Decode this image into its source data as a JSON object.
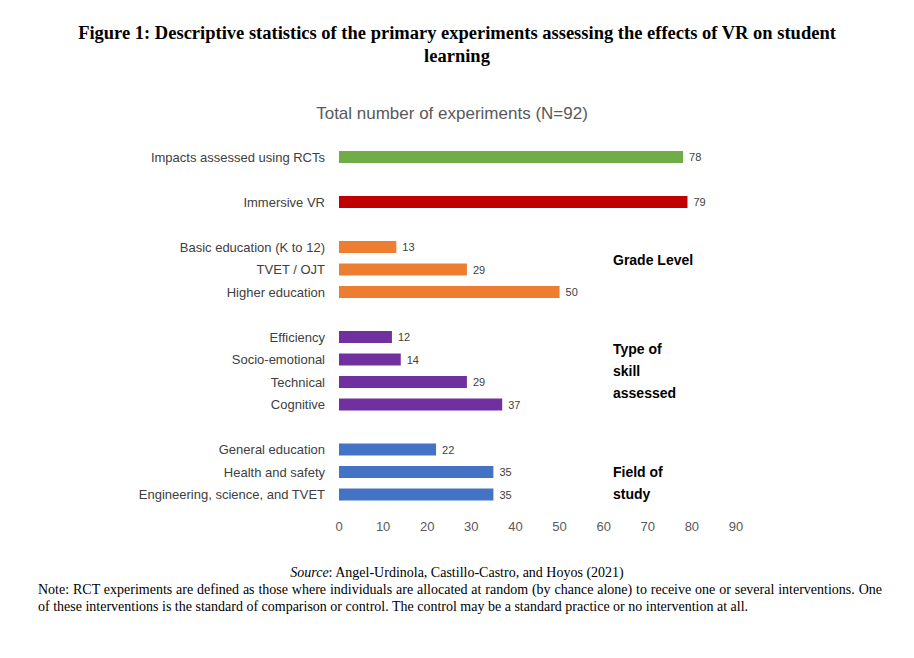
{
  "chart_data": {
    "type": "bar",
    "orientation": "horizontal",
    "title": "Figure 1: Descriptive statistics of the primary experiments assessing the effects of VR on student learning",
    "subtitle": "Total number of experiments (N=92)",
    "categories": [
      "Impacts assessed using RCTs",
      "Immersive VR",
      "Basic education (K to 12)",
      "TVET / OJT",
      "Higher education",
      "Efficiency",
      "Socio-emotional ",
      "Technical",
      "Cognitive",
      "General education",
      "Health and safety",
      "Engineering, science, and TVET"
    ],
    "values": [
      78,
      79,
      13,
      29,
      50,
      12,
      14,
      29,
      37,
      22,
      35,
      35
    ],
    "colors": [
      "#70ad47",
      "#c00000",
      "#ed7d31",
      "#ed7d31",
      "#ed7d31",
      "#7030a0",
      "#7030a0",
      "#7030a0",
      "#7030a0",
      "#4472c4",
      "#4472c4",
      "#4472c4"
    ],
    "xlim": [
      0,
      90
    ],
    "xticks": [
      0,
      10,
      20,
      30,
      40,
      50,
      60,
      70,
      80,
      90
    ],
    "grid": false,
    "data_labels": true,
    "annotations": [
      {
        "text": [
          "Grade Level"
        ],
        "categories": [
          "TVET / OJT"
        ]
      },
      {
        "text": [
          "Type of",
          "skill",
          "assessed"
        ],
        "categories": [
          "Efficiency",
          "Socio-emotional ",
          "Technical",
          "Cognitive"
        ]
      },
      {
        "text": [
          "Field of",
          "study"
        ],
        "categories": [
          "Health and safety",
          "Engineering, science, and TVET"
        ]
      }
    ],
    "source": "Source: Angel-Urdinola, Castillo-Castro, and Hoyos (2021)",
    "note": "Note: RCT experiments are defined as those where individuals are allocated at random (by chance alone) to receive one or several interventions. One of these interventions is the standard of comparison or control. The control may be a standard practice or no intervention at all."
  }
}
